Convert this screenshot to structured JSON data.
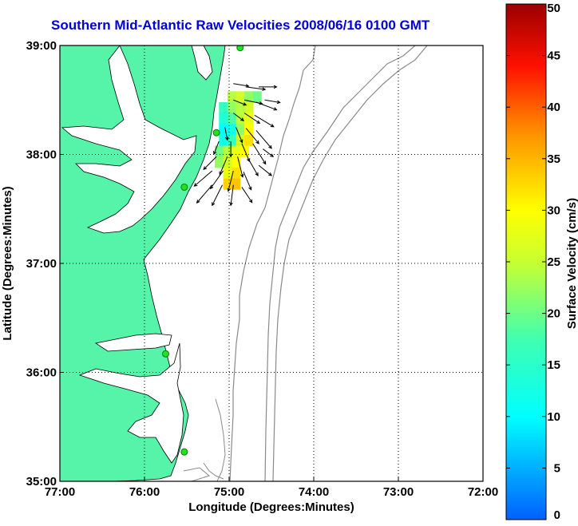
{
  "title": "Southern Mid-Atlantic Raw Velocities 2008/06/16 0100 GMT",
  "xlabel": "Longitude (Degrees:Minutes)",
  "ylabel": "Latitude (Degrees:Minutes)",
  "colorbar_label": "Surface Velocity (cm/s)",
  "x_ticks": [
    "77:00",
    "76:00",
    "75:00",
    "74:00",
    "73:00",
    "72:00"
  ],
  "y_ticks": [
    "39:00",
    "38:00",
    "37:00",
    "36:00",
    "35:00"
  ],
  "colorbar_ticks": [
    "50",
    "45",
    "40",
    "35",
    "30",
    "25",
    "20",
    "15",
    "10",
    "5",
    "0"
  ],
  "colors": {
    "land": "#55f4a8",
    "coast": "#000000",
    "bathymetry": "#8a8a8a",
    "grid": "#000000",
    "station": "#22e022",
    "title": "#0000d8"
  },
  "chart_data": {
    "type": "heatmap",
    "xlim": [
      -77,
      -72
    ],
    "ylim": [
      35,
      39
    ],
    "colorbar_range": [
      0,
      50
    ],
    "grid": true,
    "stations": [
      {
        "lon": -74.87,
        "lat": 38.98
      },
      {
        "lon": -75.15,
        "lat": 38.2
      },
      {
        "lon": -75.53,
        "lat": 37.7
      },
      {
        "lon": -75.75,
        "lat": 36.17
      },
      {
        "lon": -75.53,
        "lat": 35.27
      }
    ],
    "velocity_cells": [
      {
        "lon": -74.97,
        "lat": 38.53,
        "v": 24
      },
      {
        "lon": -74.87,
        "lat": 38.53,
        "v": 26
      },
      {
        "lon": -74.77,
        "lat": 38.53,
        "v": 22
      },
      {
        "lon": -74.67,
        "lat": 38.53,
        "v": 20
      },
      {
        "lon": -75.07,
        "lat": 38.43,
        "v": 16
      },
      {
        "lon": -74.97,
        "lat": 38.43,
        "v": 22
      },
      {
        "lon": -74.87,
        "lat": 38.43,
        "v": 24
      },
      {
        "lon": -74.77,
        "lat": 38.43,
        "v": 26
      },
      {
        "lon": -75.07,
        "lat": 38.33,
        "v": 14
      },
      {
        "lon": -74.97,
        "lat": 38.33,
        "v": 18
      },
      {
        "lon": -74.87,
        "lat": 38.33,
        "v": 24
      },
      {
        "lon": -74.77,
        "lat": 38.33,
        "v": 28
      },
      {
        "lon": -75.07,
        "lat": 38.23,
        "v": 10
      },
      {
        "lon": -74.97,
        "lat": 38.23,
        "v": 12
      },
      {
        "lon": -74.87,
        "lat": 38.23,
        "v": 22
      },
      {
        "lon": -74.77,
        "lat": 38.23,
        "v": 30
      },
      {
        "lon": -75.07,
        "lat": 38.13,
        "v": 12
      },
      {
        "lon": -74.97,
        "lat": 38.13,
        "v": 16
      },
      {
        "lon": -74.87,
        "lat": 38.13,
        "v": 26
      },
      {
        "lon": -74.77,
        "lat": 38.13,
        "v": 32
      },
      {
        "lon": -75.12,
        "lat": 38.03,
        "v": 20
      },
      {
        "lon": -75.02,
        "lat": 38.03,
        "v": 24
      },
      {
        "lon": -74.92,
        "lat": 38.03,
        "v": 28
      },
      {
        "lon": -74.82,
        "lat": 38.03,
        "v": 30
      },
      {
        "lon": -75.12,
        "lat": 37.93,
        "v": 22
      },
      {
        "lon": -75.02,
        "lat": 37.93,
        "v": 26
      },
      {
        "lon": -74.92,
        "lat": 37.93,
        "v": 30
      },
      {
        "lon": -75.02,
        "lat": 37.83,
        "v": 28
      },
      {
        "lon": -74.92,
        "lat": 37.83,
        "v": 32
      },
      {
        "lon": -75.02,
        "lat": 37.73,
        "v": 33
      },
      {
        "lon": -74.92,
        "lat": 37.73,
        "v": 34
      }
    ],
    "vectors": [
      {
        "lon": -74.95,
        "lat": 38.65,
        "u": 12,
        "v": -2
      },
      {
        "lon": -74.8,
        "lat": 38.62,
        "u": 15,
        "v": -2
      },
      {
        "lon": -74.65,
        "lat": 38.62,
        "u": 14,
        "v": 0
      },
      {
        "lon": -74.95,
        "lat": 38.5,
        "u": 10,
        "v": -4
      },
      {
        "lon": -74.82,
        "lat": 38.5,
        "u": 14,
        "v": -3
      },
      {
        "lon": -74.68,
        "lat": 38.48,
        "u": 16,
        "v": -6
      },
      {
        "lon": -74.58,
        "lat": 38.5,
        "u": 12,
        "v": -2
      },
      {
        "lon": -74.95,
        "lat": 38.38,
        "u": 8,
        "v": -6
      },
      {
        "lon": -74.82,
        "lat": 38.38,
        "u": 12,
        "v": -8
      },
      {
        "lon": -74.7,
        "lat": 38.36,
        "u": 15,
        "v": -9
      },
      {
        "lon": -75.05,
        "lat": 38.25,
        "u": 2,
        "v": -10
      },
      {
        "lon": -74.92,
        "lat": 38.25,
        "u": 5,
        "v": -12
      },
      {
        "lon": -74.8,
        "lat": 38.24,
        "u": 10,
        "v": -12
      },
      {
        "lon": -74.68,
        "lat": 38.22,
        "u": 12,
        "v": -14
      },
      {
        "lon": -75.12,
        "lat": 38.12,
        "u": -4,
        "v": -10
      },
      {
        "lon": -74.98,
        "lat": 38.12,
        "u": 0,
        "v": -12
      },
      {
        "lon": -74.85,
        "lat": 38.1,
        "u": 6,
        "v": -14
      },
      {
        "lon": -74.72,
        "lat": 38.1,
        "u": 10,
        "v": -16
      },
      {
        "lon": -75.15,
        "lat": 37.98,
        "u": -10,
        "v": -10
      },
      {
        "lon": -75.02,
        "lat": 37.98,
        "u": -6,
        "v": -14
      },
      {
        "lon": -74.9,
        "lat": 37.98,
        "u": 4,
        "v": -16
      },
      {
        "lon": -74.78,
        "lat": 37.97,
        "u": 8,
        "v": -14
      },
      {
        "lon": -75.2,
        "lat": 37.85,
        "u": -14,
        "v": -12
      },
      {
        "lon": -75.07,
        "lat": 37.85,
        "u": -10,
        "v": -14
      },
      {
        "lon": -74.95,
        "lat": 37.85,
        "u": -4,
        "v": -16
      },
      {
        "lon": -74.83,
        "lat": 37.84,
        "u": 6,
        "v": -14
      },
      {
        "lon": -75.2,
        "lat": 37.72,
        "u": -12,
        "v": -14
      },
      {
        "lon": -75.08,
        "lat": 37.72,
        "u": -8,
        "v": -16
      },
      {
        "lon": -74.95,
        "lat": 37.72,
        "u": -2,
        "v": -16
      },
      {
        "lon": -74.85,
        "lat": 37.7,
        "u": 8,
        "v": -12
      },
      {
        "lon": -74.65,
        "lat": 37.9,
        "u": 10,
        "v": -8
      },
      {
        "lon": -74.6,
        "lat": 38.05,
        "u": 8,
        "v": -6
      }
    ]
  }
}
